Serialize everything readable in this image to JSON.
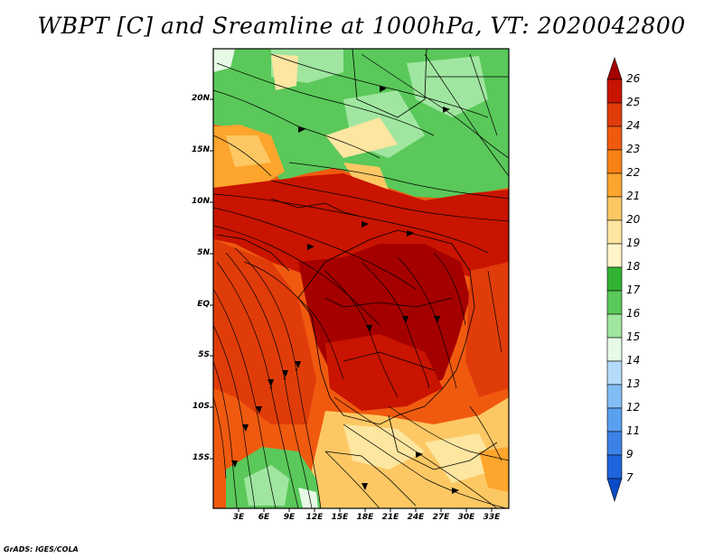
{
  "title": "WBPT [C] and Sreamline at 1000hPa, VT: 2020042800",
  "credit": "GrADS: IGES/COLA",
  "lat_labels": [
    "20N",
    "15N",
    "10N",
    "5N",
    "EQ",
    "5S",
    "10S",
    "15S"
  ],
  "lon_labels": [
    "3E",
    "6E",
    "9E",
    "12E",
    "15E",
    "18E",
    "21E",
    "24E",
    "27E",
    "30E",
    "33E"
  ],
  "colorbar": {
    "labels": [
      "26",
      "25",
      "24",
      "23",
      "22",
      "21",
      "20",
      "19",
      "18",
      "17",
      "16",
      "15",
      "14",
      "13",
      "12",
      "11",
      "9",
      "7"
    ],
    "colors": [
      "#a50000",
      "#c81400",
      "#e03c0a",
      "#f05a0f",
      "#fa8214",
      "#fda52d",
      "#fdc864",
      "#fde6a0",
      "#32b432",
      "#5ac85a",
      "#a0e6a0",
      "#e6fae6",
      "#b4dcfa",
      "#82bef5",
      "#5aa0f0",
      "#3c82e6",
      "#1e64dc",
      "#0a4bc8"
    ]
  },
  "colors": {
    "deep_red": "#a50000",
    "red": "#c81400",
    "orange": "#f05a0f",
    "light_orange": "#fda52d",
    "tan": "#fde6a0",
    "green": "#5ac85a",
    "light_green": "#a0e6a0",
    "pale": "#e6fae6",
    "blue": "#82bef5"
  }
}
